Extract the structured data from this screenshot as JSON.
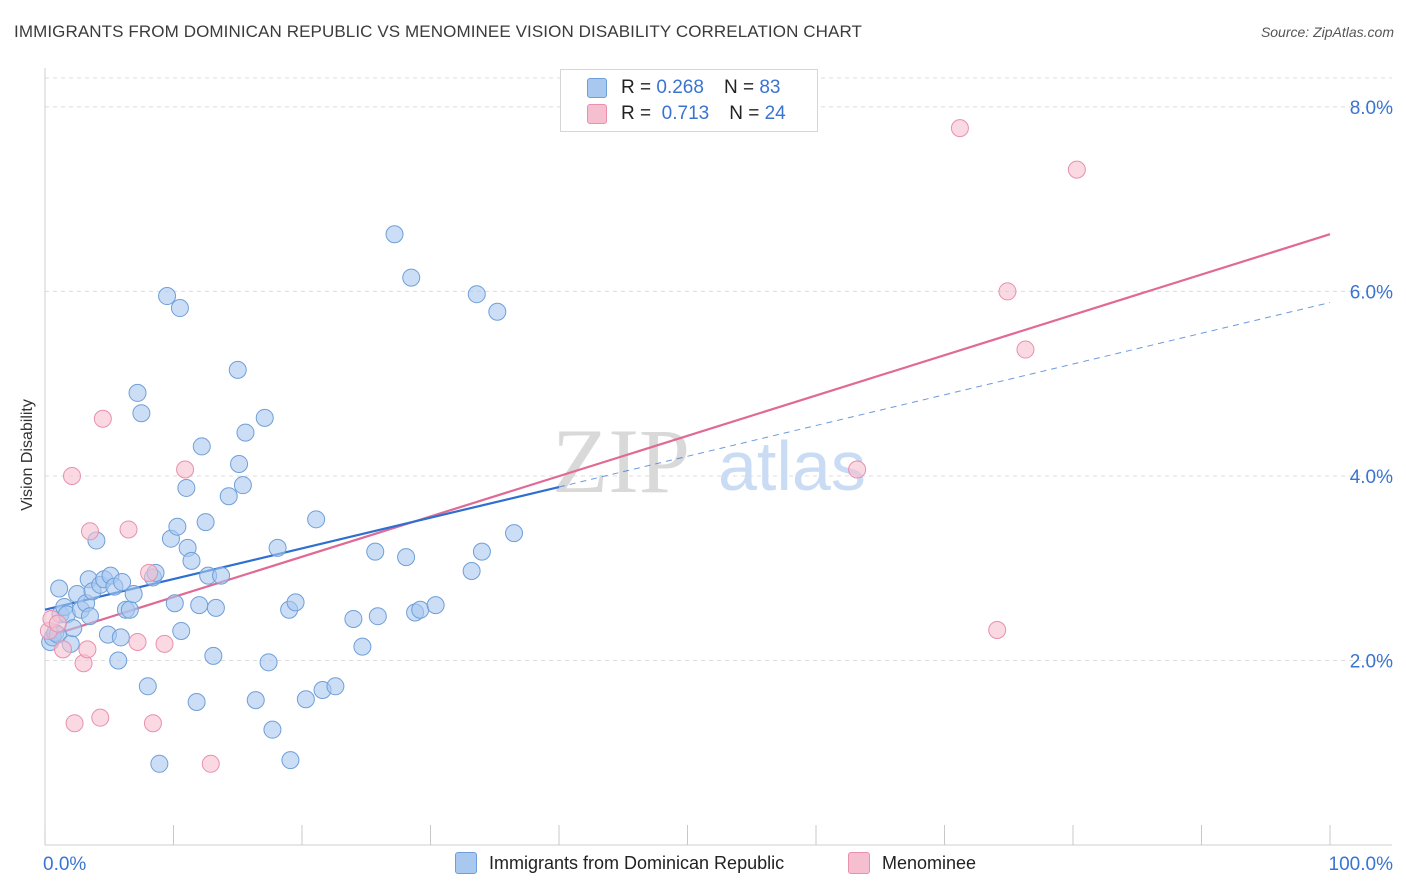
{
  "title": "IMMIGRANTS FROM DOMINICAN REPUBLIC VS MENOMINEE VISION DISABILITY CORRELATION CHART",
  "source": "Source: ZipAtlas.com",
  "watermark": {
    "zip": "ZIP",
    "atlas": "atlas"
  },
  "legend": {
    "rows": [
      {
        "r_label": "R =",
        "r_value": "0.268",
        "n_label": "N =",
        "n_value": "83"
      },
      {
        "r_label": "R =",
        "r_value": "0.713",
        "n_label": "N =",
        "n_value": "24"
      }
    ]
  },
  "bottom_legend": [
    "Immigrants from Dominican Republic",
    "Menominee"
  ],
  "colors": {
    "blue_fill": "#a9c8f0",
    "blue_stroke": "#6f9fd8",
    "blue_line": "#2e6fcf",
    "pink_fill": "#f6bfd0",
    "pink_stroke": "#e890ae",
    "pink_line": "#e06a95",
    "tick_text": "#3a74d1",
    "grid": "#dcdcdc"
  },
  "chart_data": {
    "type": "scatter",
    "title": "IMMIGRANTS FROM DOMINICAN REPUBLIC VS MENOMINEE VISION DISABILITY CORRELATION CHART",
    "xlabel": "",
    "ylabel": "Vision Disability",
    "xlim": [
      0,
      100
    ],
    "ylim": [
      0,
      8.4
    ],
    "x_tick_labels": [
      "0.0%",
      "100.0%"
    ],
    "y_ticks": [
      2,
      4,
      6,
      8
    ],
    "y_tick_labels": [
      "2.0%",
      "4.0%",
      "6.0%",
      "8.0%"
    ],
    "grid": true,
    "legend_position": "top-center",
    "series": [
      {
        "name": "Immigrants from Dominican Republic",
        "color": "#a9c8f0",
        "points": [
          [
            0.4,
            2.2
          ],
          [
            0.6,
            2.25
          ],
          [
            0.8,
            2.3
          ],
          [
            1.0,
            2.28
          ],
          [
            1.2,
            2.5
          ],
          [
            1.5,
            2.58
          ],
          [
            1.7,
            2.5
          ],
          [
            2.0,
            2.18
          ],
          [
            2.2,
            2.35
          ],
          [
            2.5,
            2.72
          ],
          [
            2.8,
            2.55
          ],
          [
            3.2,
            2.62
          ],
          [
            3.5,
            2.48
          ],
          [
            3.4,
            2.88
          ],
          [
            3.7,
            2.75
          ],
          [
            4.0,
            3.3
          ],
          [
            4.3,
            2.82
          ],
          [
            4.6,
            2.88
          ],
          [
            4.9,
            2.28
          ],
          [
            5.1,
            2.92
          ],
          [
            5.4,
            2.8
          ],
          [
            5.7,
            2.0
          ],
          [
            6.0,
            2.85
          ],
          [
            6.3,
            2.55
          ],
          [
            6.6,
            2.55
          ],
          [
            6.9,
            2.72
          ],
          [
            7.2,
            4.9
          ],
          [
            7.5,
            4.68
          ],
          [
            8.0,
            1.72
          ],
          [
            8.4,
            2.9
          ],
          [
            8.6,
            2.95
          ],
          [
            8.9,
            0.88
          ],
          [
            9.5,
            5.95
          ],
          [
            9.8,
            3.32
          ],
          [
            10.1,
            2.62
          ],
          [
            10.3,
            3.45
          ],
          [
            10.6,
            2.32
          ],
          [
            10.5,
            5.82
          ],
          [
            11.0,
            3.87
          ],
          [
            11.1,
            3.22
          ],
          [
            11.4,
            3.08
          ],
          [
            11.8,
            1.55
          ],
          [
            12.2,
            4.32
          ],
          [
            12.5,
            3.5
          ],
          [
            12.7,
            2.92
          ],
          [
            13.1,
            2.05
          ],
          [
            13.3,
            2.57
          ],
          [
            13.7,
            2.92
          ],
          [
            14.3,
            3.78
          ],
          [
            15.0,
            5.15
          ],
          [
            15.1,
            4.13
          ],
          [
            15.4,
            3.9
          ],
          [
            15.6,
            4.47
          ],
          [
            16.4,
            1.57
          ],
          [
            17.4,
            1.98
          ],
          [
            17.1,
            4.63
          ],
          [
            17.7,
            1.25
          ],
          [
            18.1,
            3.22
          ],
          [
            19.1,
            0.92
          ],
          [
            19.0,
            2.55
          ],
          [
            19.5,
            2.63
          ],
          [
            20.3,
            1.58
          ],
          [
            21.1,
            3.53
          ],
          [
            21.6,
            1.68
          ],
          [
            22.6,
            1.72
          ],
          [
            24.0,
            2.45
          ],
          [
            24.7,
            2.15
          ],
          [
            25.7,
            3.18
          ],
          [
            25.9,
            2.48
          ],
          [
            27.2,
            6.62
          ],
          [
            28.1,
            3.12
          ],
          [
            28.5,
            6.15
          ],
          [
            28.8,
            2.52
          ],
          [
            29.2,
            2.55
          ],
          [
            30.4,
            2.6
          ],
          [
            33.2,
            2.97
          ],
          [
            33.6,
            5.97
          ],
          [
            34.0,
            3.18
          ],
          [
            35.2,
            5.78
          ],
          [
            36.5,
            3.38
          ],
          [
            1.1,
            2.78
          ],
          [
            5.9,
            2.25
          ],
          [
            12.0,
            2.6
          ]
        ]
      },
      {
        "name": "Menominee",
        "color": "#f6bfd0",
        "points": [
          [
            0.3,
            2.32
          ],
          [
            0.5,
            2.45
          ],
          [
            1.0,
            2.4
          ],
          [
            1.4,
            2.12
          ],
          [
            2.1,
            4.0
          ],
          [
            2.3,
            1.32
          ],
          [
            3.0,
            1.97
          ],
          [
            3.3,
            2.12
          ],
          [
            3.5,
            3.4
          ],
          [
            4.3,
            1.38
          ],
          [
            4.5,
            4.62
          ],
          [
            6.5,
            3.42
          ],
          [
            7.2,
            2.2
          ],
          [
            8.1,
            2.95
          ],
          [
            8.4,
            1.32
          ],
          [
            9.3,
            2.18
          ],
          [
            10.9,
            4.07
          ],
          [
            12.9,
            0.88
          ],
          [
            71.2,
            7.77
          ],
          [
            74.9,
            6.0
          ],
          [
            76.3,
            5.37
          ],
          [
            63.2,
            4.07
          ],
          [
            74.1,
            2.33
          ],
          [
            80.3,
            7.32
          ]
        ]
      }
    ],
    "trend_lines": [
      {
        "series": "Immigrants from Dominican Republic",
        "x": [
          0,
          40
        ],
        "y": [
          2.55,
          3.88
        ],
        "style": "solid",
        "extended_to": [
          100,
          5.88
        ],
        "extended_style": "dashed"
      },
      {
        "series": "Menominee",
        "x": [
          0,
          100
        ],
        "y": [
          2.25,
          6.62
        ],
        "style": "solid"
      }
    ]
  }
}
